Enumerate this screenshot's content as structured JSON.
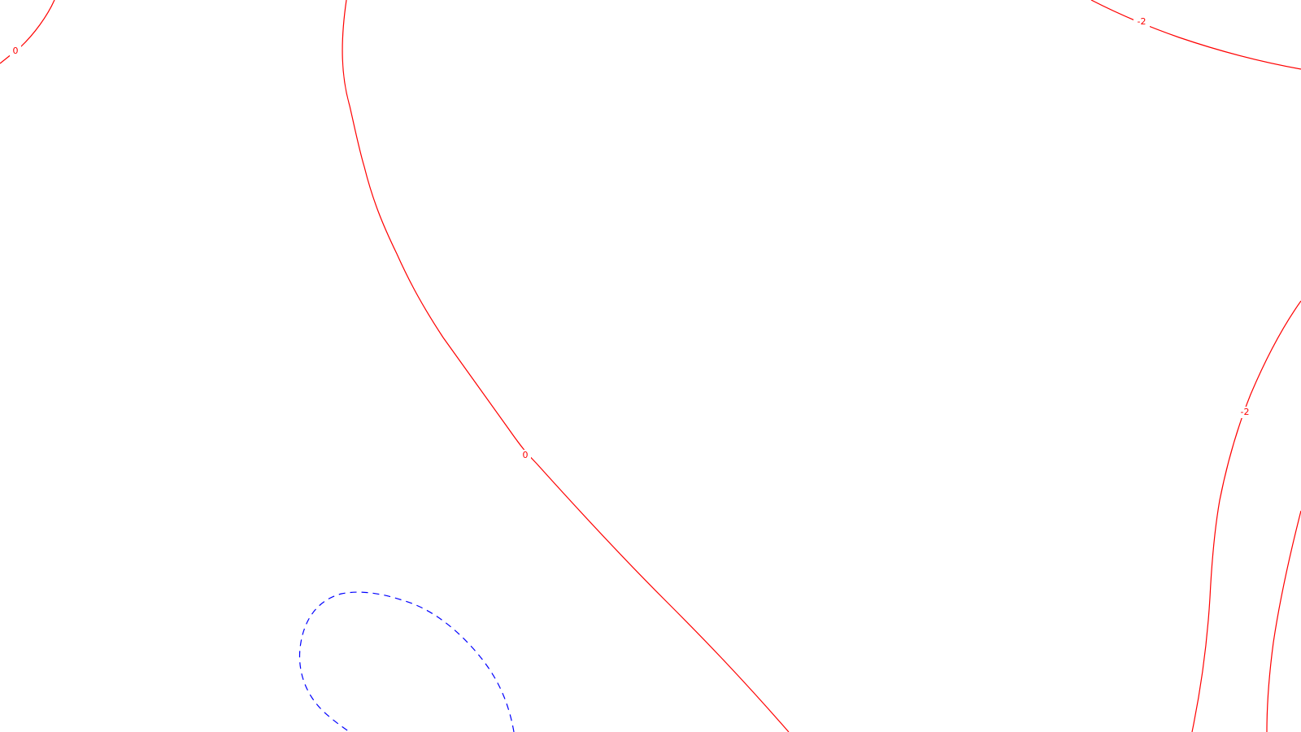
{
  "chart_data": {
    "type": "contour",
    "title": "",
    "xlabel": "",
    "ylabel": "",
    "grid": false,
    "legend": "none",
    "colors": {
      "zero_and_negative": "#ff0000",
      "positive_dashed": "#0000ff",
      "background": "#ffffff"
    },
    "levels": [
      {
        "value": "0",
        "style": "solid",
        "color": "#ff0000"
      },
      {
        "value": "-2",
        "style": "solid",
        "color": "#ff0000"
      },
      {
        "value": "",
        "style": "dashed",
        "color": "#0000ff"
      }
    ],
    "labels": [
      {
        "id": "label-zero-top-left",
        "text": "0",
        "color": "#ff0000"
      },
      {
        "id": "label-zero-center",
        "text": "0",
        "color": "#ff0000"
      },
      {
        "id": "label-minus2-top-right",
        "text": "-2",
        "color": "#ff0000"
      },
      {
        "id": "label-minus2-right",
        "text": "-2",
        "color": "#ff0000"
      }
    ]
  }
}
